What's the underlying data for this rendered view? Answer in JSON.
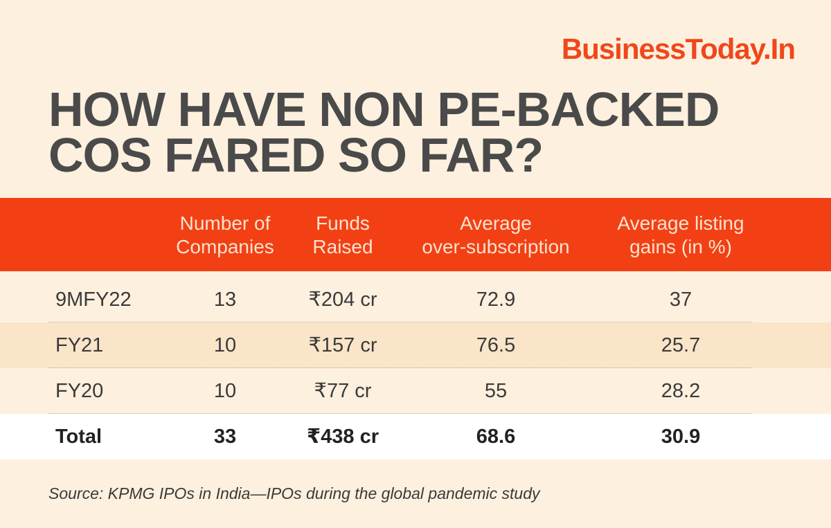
{
  "brand": "BusinessToday.In",
  "headline": {
    "line1": "HOW HAVE NON PE-BACKED",
    "line2": "COS FARED SO FAR?"
  },
  "colors": {
    "accent": "#f24014",
    "brand": "#f0471a",
    "background": "#fdf0de",
    "headline": "#4a4a4a"
  },
  "chart_data": {
    "type": "table",
    "title": "HOW HAVE NON PE-BACKED COS FARED SO FAR?",
    "columns": [
      {
        "line1": "",
        "line2": ""
      },
      {
        "line1": "Number of",
        "line2": "Companies"
      },
      {
        "line1": "Funds",
        "line2": "Raised"
      },
      {
        "line1": "Average",
        "line2": "over-subscription"
      },
      {
        "line1": "Average listing",
        "line2": "gains (in %)"
      }
    ],
    "rows": [
      {
        "period": "9MFY22",
        "companies": "13",
        "funds": "₹204 cr",
        "oversub": "72.9",
        "gains": "37"
      },
      {
        "period": "FY21",
        "companies": "10",
        "funds": "₹157 cr",
        "oversub": "76.5",
        "gains": "25.7"
      },
      {
        "period": "FY20",
        "companies": "10",
        "funds": "₹77 cr",
        "oversub": "55",
        "gains": "28.2"
      }
    ],
    "total": {
      "period": "Total",
      "companies": "33",
      "funds": "₹438 cr",
      "oversub": "68.6",
      "gains": "30.9"
    }
  },
  "source": "Source: KPMG IPOs in India—IPOs during the global pandemic study"
}
